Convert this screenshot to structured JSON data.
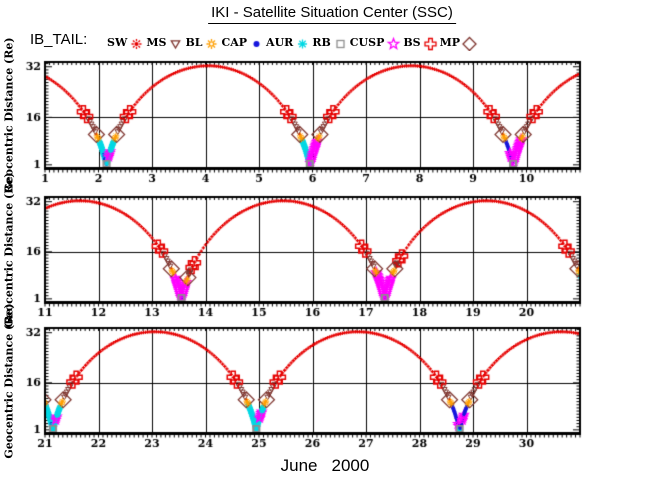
{
  "header": {
    "title": "IKI - Satellite Situation Center (SSC)",
    "dataset_label": "IB_TAIL:"
  },
  "legend": {
    "items": [
      {
        "id": "sw",
        "label": "SW",
        "symbol": "sun-filled",
        "color": "#e60000"
      },
      {
        "id": "ms",
        "label": "MS",
        "symbol": "triangle-down-open",
        "color": "#7d332d"
      },
      {
        "id": "bl",
        "label": "BL",
        "symbol": "sun-open",
        "color": "#ff9f00"
      },
      {
        "id": "cap",
        "label": "CAP",
        "symbol": "circle-filled",
        "color": "#1616dd"
      },
      {
        "id": "aur",
        "label": "AUR",
        "symbol": "asterisk",
        "color": "#00d8e4"
      },
      {
        "id": "rb",
        "label": "RB",
        "symbol": "square-open",
        "color": "#8f8f8f"
      },
      {
        "id": "cusp",
        "label": "CUSP",
        "symbol": "star-open",
        "color": "#ff00ff"
      },
      {
        "id": "bs",
        "label": "BS",
        "symbol": "cross-open",
        "color": "#e60000"
      },
      {
        "id": "mp",
        "label": "MP",
        "symbol": "diamond-open",
        "color": "#7d332d"
      }
    ]
  },
  "chart_data": {
    "type": "line",
    "title": "IKI - Satellite Situation Center (SSC)",
    "series_label": "IB_TAIL",
    "xlabel": {
      "month": "June",
      "year": "2000"
    },
    "ylabel": "Geocentric Distance (Re)",
    "y_axis": {
      "min": 0,
      "max": 33.5,
      "tick_labels": [
        "32",
        "16",
        "1"
      ],
      "tick_values": [
        32,
        16,
        1
      ],
      "gridline_at": 16,
      "minor_step": 1
    },
    "panels": [
      {
        "day_start": 1,
        "day_end": 11,
        "day_ticks": [
          1,
          2,
          3,
          4,
          5,
          6,
          7,
          8,
          9,
          10
        ]
      },
      {
        "day_start": 11,
        "day_end": 21,
        "day_ticks": [
          11,
          12,
          13,
          14,
          15,
          16,
          17,
          18,
          19,
          20
        ]
      },
      {
        "day_start": 21,
        "day_end": 31,
        "day_ticks": [
          21,
          22,
          23,
          24,
          25,
          26,
          27,
          28,
          29,
          30
        ]
      }
    ],
    "orbit": {
      "period_days": 3.8,
      "first_perigee_day": 2.15,
      "perigee_re": 1.25,
      "apogee_re": 32.3
    },
    "boundaries": {
      "bs_re": 16.3,
      "bs_double_offset_re": 1.5,
      "mp_re": 10.6,
      "bl_re": 9.7,
      "ms_hi": 15.6,
      "ms_lo": 11.3,
      "rb_re": 1.6
    },
    "region_colors": {
      "SW": "#e60000",
      "MS": "#7d332d",
      "BL": "#ff9f00",
      "CAP": "#1616dd",
      "AUR": "#00d8e4",
      "RB": "#8f8f8f",
      "CUSP": "#ff00ff",
      "BS": "#e60000",
      "MP": "#7d332d"
    },
    "passes": [
      {
        "perigee_day": 2.15,
        "segments": {
          "desc": [
            [
              "AUR",
              8.6,
              2.6
            ],
            [
              "CAP",
              4.6,
              1.25
            ]
          ],
          "asc": [
            [
              "AUR",
              1.25,
              8.6
            ],
            [
              "CUSP",
              3.4,
              5.4
            ]
          ]
        }
      },
      {
        "perigee_day": 5.95,
        "segments": {
          "desc": [
            [
              "AUR",
              8.8,
              1.25
            ],
            [
              "CAP",
              2.8,
              1.25
            ]
          ],
          "asc": [
            [
              "AUR",
              1.2,
              2.0
            ],
            [
              "CUSP",
              1.5,
              9.0
            ]
          ]
        }
      },
      {
        "perigee_day": 9.75,
        "segments": {
          "desc": [
            [
              "CAP",
              9.0,
              1.3
            ],
            [
              "CUSP",
              5.2,
              3.0
            ]
          ],
          "asc": [
            [
              "CUSP",
              1.4,
              9.2
            ]
          ]
        }
      },
      {
        "perigee_day": 13.55,
        "segments": {
          "desc": [
            [
              "CUSP",
              8.2,
              1.4
            ],
            [
              "CAP",
              2.4,
              1.25
            ]
          ],
          "asc": [
            [
              "CUSP",
              1.4,
              6.4
            ]
          ]
        },
        "overrides": {
          "asc": {
            "bs_re": 11.0,
            "mp_re": 7.8,
            "bl_re": 6.9
          }
        }
      },
      {
        "perigee_day": 17.35,
        "segments": {
          "desc": [
            [
              "CUSP",
              9.6,
              1.4
            ],
            [
              "CAP",
              2.6,
              1.25
            ]
          ],
          "asc": [
            [
              "CUSP",
              1.4,
              8.2
            ]
          ]
        },
        "overrides": {
          "asc": {
            "bs_re": 13.2
          }
        }
      },
      {
        "perigee_day": 21.15,
        "segments": {
          "desc": [
            [
              "AUR",
              9.0,
              2.0
            ],
            [
              "CAP",
              3.2,
              1.25
            ]
          ],
          "asc": [
            [
              "AUR",
              1.25,
              8.6
            ],
            [
              "CUSP",
              3.6,
              5.8
            ]
          ]
        }
      },
      {
        "perigee_day": 24.95,
        "segments": {
          "desc": [
            [
              "AUR",
              9.2,
              1.25
            ]
          ],
          "asc": [
            [
              "AUR",
              1.25,
              8.6
            ],
            [
              "CUSP",
              4.2,
              7.0
            ]
          ]
        }
      },
      {
        "perigee_day": 28.75,
        "segments": {
          "desc": [
            [
              "CAP",
              9.2,
              1.3
            ],
            [
              "CUSP",
              3.4,
              1.6
            ],
            [
              "AUR",
              1.45,
              1.2
            ]
          ],
          "asc": [
            [
              "CAP",
              1.3,
              9.0
            ],
            [
              "CUSP",
              3.6,
              6.0
            ],
            [
              "AUR",
              1.2,
              1.45
            ]
          ]
        }
      }
    ]
  }
}
